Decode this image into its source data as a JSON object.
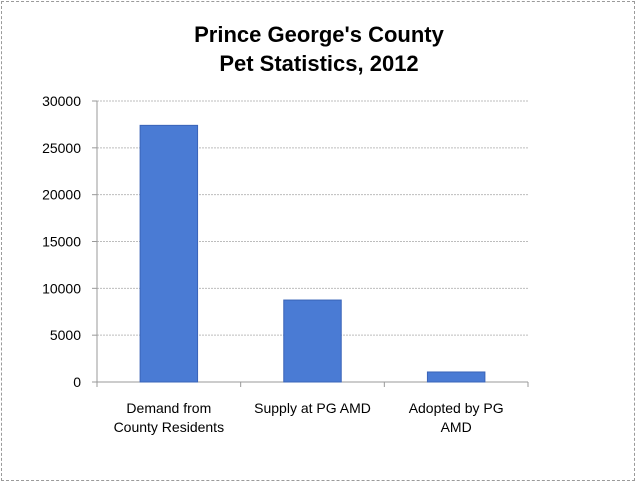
{
  "chart_data": {
    "type": "bar",
    "title": [
      "Prince George's County",
      "Pet Statistics, 2012"
    ],
    "categories": [
      [
        "Demand from",
        "County Residents"
      ],
      [
        "Supply at PG AMD"
      ],
      [
        "Adopted by PG",
        "AMD"
      ]
    ],
    "values": [
      27400,
      8750,
      1070
    ],
    "xlabel": "",
    "ylabel": "",
    "ylim": [
      0,
      30000
    ],
    "yticks": [
      "0",
      "5000",
      "10000",
      "15000",
      "20000",
      "25000",
      "30000"
    ],
    "grid": true,
    "legend": "none",
    "colors": {
      "bar": "#4a7bd4",
      "bar_edge": "#3a64b8",
      "grid": "#bdbdbd"
    }
  }
}
